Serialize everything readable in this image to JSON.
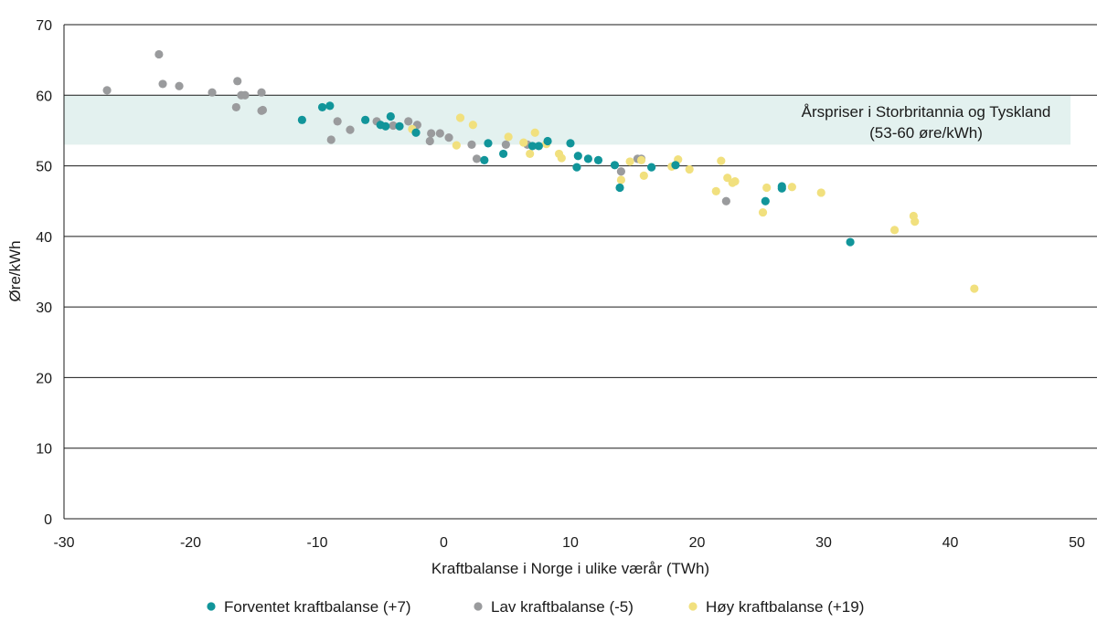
{
  "chart_data": {
    "type": "scatter",
    "xlabel": "Kraftbalanse i Norge i ulike værår (TWh)",
    "ylabel": "Øre/kWh",
    "xlim": [
      -30,
      50
    ],
    "ylim": [
      0,
      70
    ],
    "x_ticks": [
      "-30",
      "-20",
      "-10",
      "0",
      "10",
      "20",
      "30",
      "40",
      "50"
    ],
    "y_ticks": [
      "0",
      "10",
      "20",
      "30",
      "40",
      "50",
      "60",
      "70"
    ],
    "grid": "horizontal",
    "legend_position": "bottom",
    "band": {
      "y_range": [
        53,
        60
      ],
      "x_range": [
        -30,
        49.5
      ],
      "color": "#e3f1ef",
      "label_line1": "Årspriser i Storbritannia og Tyskland",
      "label_line2": "(53-60 øre/kWh)"
    },
    "series": [
      {
        "name": "Forventet kraftbalanse (+7)",
        "color": "#11959a",
        "points": [
          [
            -11.2,
            56.5
          ],
          [
            -9.6,
            58.3
          ],
          [
            -9.0,
            58.5
          ],
          [
            -6.2,
            56.5
          ],
          [
            -5.0,
            55.8
          ],
          [
            -4.6,
            55.6
          ],
          [
            -4.2,
            57.0
          ],
          [
            -3.5,
            55.6
          ],
          [
            -2.2,
            54.7
          ],
          [
            3.2,
            50.8
          ],
          [
            3.5,
            53.2
          ],
          [
            4.7,
            51.7
          ],
          [
            7.0,
            52.8
          ],
          [
            7.5,
            52.8
          ],
          [
            8.2,
            53.5
          ],
          [
            10.0,
            53.2
          ],
          [
            10.5,
            49.8
          ],
          [
            10.6,
            51.4
          ],
          [
            11.4,
            51.0
          ],
          [
            12.2,
            50.8
          ],
          [
            13.5,
            50.1
          ],
          [
            13.9,
            46.9
          ],
          [
            16.4,
            49.8
          ],
          [
            18.3,
            50.1
          ],
          [
            25.4,
            45.0
          ],
          [
            26.7,
            46.8
          ],
          [
            26.7,
            47.1
          ],
          [
            32.1,
            39.2
          ]
        ]
      },
      {
        "name": "Lav kraftbalanse (-5)",
        "color": "#9a9b9d",
        "points": [
          [
            -26.6,
            60.7
          ],
          [
            -22.5,
            65.8
          ],
          [
            -22.2,
            61.6
          ],
          [
            -20.9,
            61.3
          ],
          [
            -18.3,
            60.4
          ],
          [
            -16.3,
            62.0
          ],
          [
            -16.4,
            58.3
          ],
          [
            -16.0,
            60.0
          ],
          [
            -15.7,
            60.0
          ],
          [
            -14.4,
            60.4
          ],
          [
            -14.4,
            57.8
          ],
          [
            -14.3,
            57.9
          ],
          [
            -8.9,
            53.7
          ],
          [
            -8.4,
            56.3
          ],
          [
            -7.4,
            55.1
          ],
          [
            -5.3,
            56.3
          ],
          [
            -4.0,
            55.7
          ],
          [
            -2.8,
            56.3
          ],
          [
            -2.1,
            55.8
          ],
          [
            -1.1,
            53.5
          ],
          [
            -1.0,
            54.6
          ],
          [
            -0.3,
            54.6
          ],
          [
            0.4,
            54.0
          ],
          [
            2.2,
            53.0
          ],
          [
            2.6,
            51.0
          ],
          [
            4.9,
            53.0
          ],
          [
            6.6,
            53.0
          ],
          [
            14.0,
            49.2
          ],
          [
            15.3,
            51.0
          ],
          [
            15.6,
            51.0
          ],
          [
            22.3,
            45.0
          ]
        ]
      },
      {
        "name": "Høy kraftbalanse (+19)",
        "color": "#f1e07e",
        "points": [
          [
            -2.5,
            55.2
          ],
          [
            1.0,
            52.9
          ],
          [
            1.3,
            56.8
          ],
          [
            2.3,
            55.8
          ],
          [
            5.1,
            54.1
          ],
          [
            6.3,
            53.3
          ],
          [
            6.8,
            51.7
          ],
          [
            7.2,
            54.7
          ],
          [
            8.1,
            53.1
          ],
          [
            9.1,
            51.7
          ],
          [
            9.3,
            51.1
          ],
          [
            14.0,
            48.0
          ],
          [
            14.7,
            50.6
          ],
          [
            15.6,
            50.8
          ],
          [
            15.8,
            48.6
          ],
          [
            18.0,
            49.9
          ],
          [
            18.5,
            50.9
          ],
          [
            19.4,
            49.5
          ],
          [
            21.5,
            46.4
          ],
          [
            21.9,
            50.7
          ],
          [
            22.4,
            48.3
          ],
          [
            22.8,
            47.6
          ],
          [
            23.0,
            47.8
          ],
          [
            25.2,
            43.4
          ],
          [
            25.5,
            46.9
          ],
          [
            27.5,
            47.0
          ],
          [
            29.8,
            46.2
          ],
          [
            35.6,
            40.9
          ],
          [
            37.1,
            42.9
          ],
          [
            37.2,
            42.1
          ],
          [
            41.9,
            32.6
          ]
        ]
      }
    ]
  }
}
